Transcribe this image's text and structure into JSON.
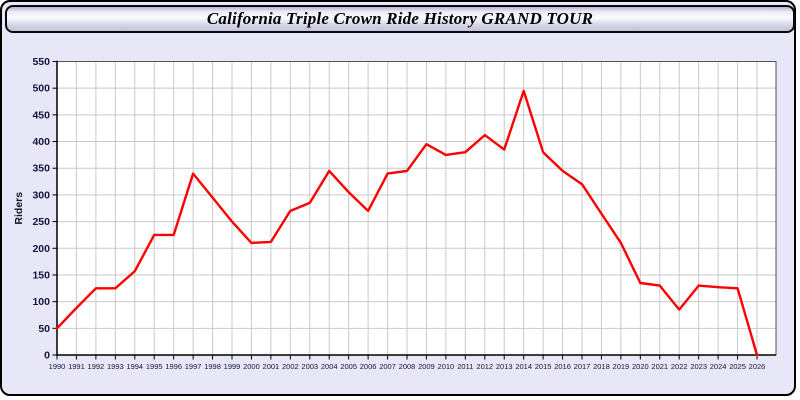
{
  "window": {
    "title": "California Triple Crown Ride History GRAND TOUR"
  },
  "colors": {
    "window_background": "#e7e7f7",
    "window_border": "#000000",
    "titlebar_gradient_top": "#b4b4c8",
    "titlebar_gradient_mid": "#fcfcff",
    "titlebar_gradient_bottom": "#c2c2da",
    "plot_background": "#ffffff",
    "gridline": "#c9c9c9",
    "plot_frame": "#555555",
    "axis": "#000000",
    "tick_label": "#15153a",
    "series_line": "#ff0000"
  },
  "chart_data": {
    "type": "line",
    "title": "California Triple Crown Ride History GRAND TOUR",
    "xlabel": "",
    "ylabel": "Riders",
    "grid": true,
    "legend": false,
    "ylim": [
      0,
      550
    ],
    "ytick_step": 50,
    "x": [
      1990,
      1991,
      1992,
      1993,
      1994,
      1995,
      1996,
      1997,
      1998,
      1999,
      2000,
      2001,
      2002,
      2003,
      2004,
      2005,
      2006,
      2007,
      2008,
      2009,
      2010,
      2011,
      2012,
      2013,
      2014,
      2015,
      2016,
      2017,
      2018,
      2019,
      2020,
      2021,
      2022,
      2023,
      2024,
      2025,
      2026
    ],
    "series": [
      {
        "name": "Riders",
        "color": "#ff0000",
        "values": [
          50,
          88,
          125,
          125,
          157,
          225,
          225,
          340,
          295,
          250,
          210,
          212,
          270,
          285,
          345,
          305,
          270,
          340,
          345,
          395,
          375,
          380,
          412,
          385,
          495,
          380,
          345,
          320,
          265,
          210,
          135,
          130,
          85,
          130,
          127,
          125,
          0
        ]
      }
    ]
  }
}
